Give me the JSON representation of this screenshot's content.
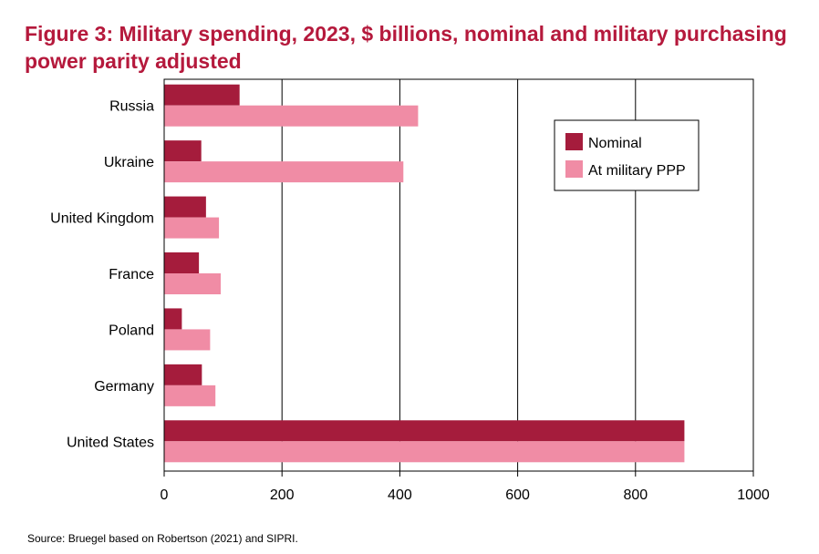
{
  "title": "Figure 3: Military spending, 2023, $ billions, nominal and military purchasing power parity adjusted",
  "source": "Source: Bruegel based on Robertson (2021) and SIPRI.",
  "chart_data": {
    "type": "bar",
    "orientation": "horizontal",
    "categories": [
      "Russia",
      "Ukraine",
      "United Kingdom",
      "France",
      "Poland",
      "Germany",
      "United States"
    ],
    "series": [
      {
        "name": "Nominal",
        "color": "#a51c3c",
        "values": [
          128,
          63,
          71,
          59,
          30,
          64,
          883
        ]
      },
      {
        "name": "At military PPP",
        "color": "#f08ca5",
        "values": [
          431,
          406,
          93,
          96,
          78,
          87,
          883
        ]
      }
    ],
    "xlim": [
      0,
      1000
    ],
    "xticks": [
      0,
      200,
      400,
      600,
      800,
      1000
    ],
    "grid": "vertical",
    "legend_position": "top-right"
  }
}
